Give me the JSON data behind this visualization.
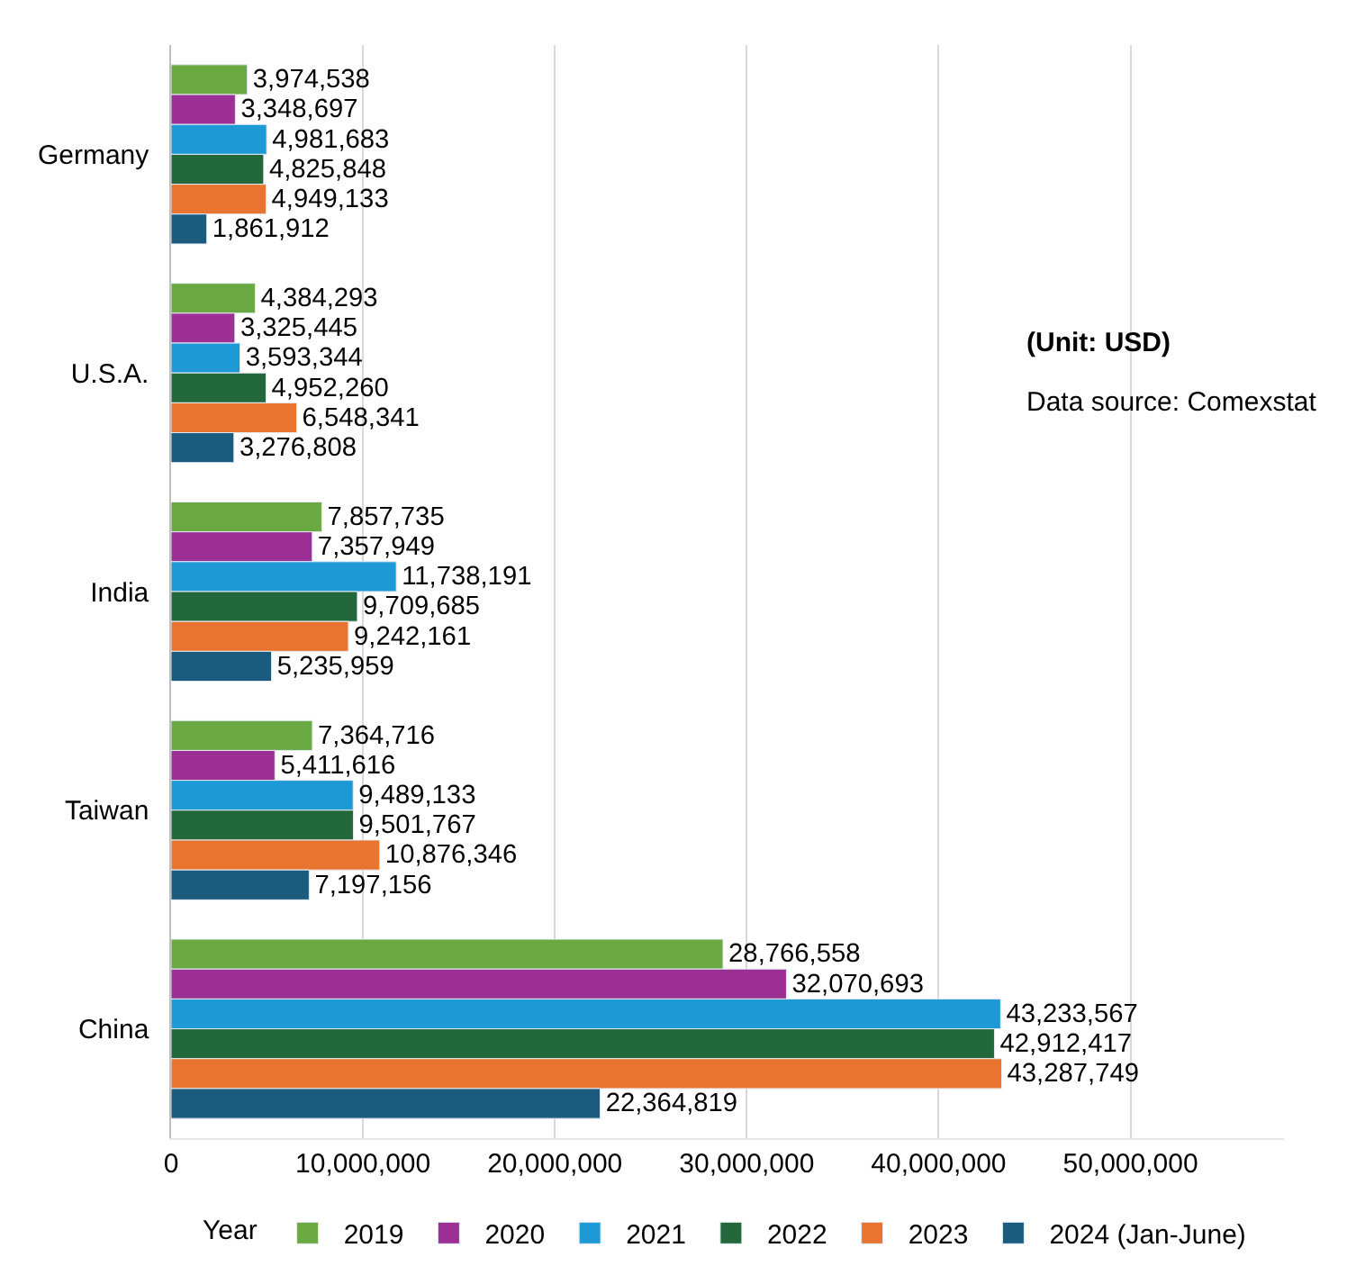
{
  "chart_data": {
    "type": "bar",
    "orientation": "horizontal",
    "legend_title": "Year",
    "categories": [
      "Germany",
      "U.S.A.",
      "India",
      "Taiwan",
      "China"
    ],
    "series": [
      {
        "name": "2019",
        "color": "#6aa842",
        "values": [
          3974538,
          4384293,
          7857735,
          7364716,
          28766558
        ],
        "value_labels": [
          "3,974,538",
          "4,384,293",
          "7,857,735",
          "7,364,716",
          "28,766,558"
        ]
      },
      {
        "name": "2020",
        "color": "#9b2f93",
        "values": [
          3348697,
          3325445,
          7357949,
          5411616,
          32070693
        ],
        "value_labels": [
          "3,348,697",
          "3,325,445",
          "7,357,949",
          "5,411,616",
          "32,070,693"
        ]
      },
      {
        "name": "2021",
        "color": "#1d9ad6",
        "values": [
          4981683,
          3593344,
          11738191,
          9489133,
          43233567
        ],
        "value_labels": [
          "4,981,683",
          "3,593,344",
          "11,738,191",
          "9,489,133",
          "43,233,567"
        ]
      },
      {
        "name": "2022",
        "color": "#22683a",
        "values": [
          4825848,
          4952260,
          9709685,
          9501767,
          42912417
        ],
        "value_labels": [
          "4,825,848",
          "4,952,260",
          "9,709,685",
          "9,501,767",
          "42,912,417"
        ]
      },
      {
        "name": "2023",
        "color": "#e8742f",
        "values": [
          4949133,
          6548341,
          9242161,
          10876346,
          43287749
        ],
        "value_labels": [
          "4,949,133",
          "6,548,341",
          "9,242,161",
          "10,876,346",
          "43,287,749"
        ]
      },
      {
        "name": "2024 (Jan-June)",
        "color": "#1a5b7e",
        "values": [
          1861912,
          3276808,
          5235959,
          7197156,
          22364819
        ],
        "value_labels": [
          "1,861,912",
          "3,276,808",
          "5,235,959",
          "7,197,156",
          "22,364,819"
        ]
      }
    ],
    "xlim": [
      0,
      58000000
    ],
    "xticks": [
      0,
      {
        "value": 10000000,
        "label": "10,000,000"
      },
      {
        "value": 20000000,
        "label": "20,000,000"
      },
      {
        "value": 30000000,
        "label": "30,000,000"
      },
      {
        "value": 40000000,
        "label": "40,000,000"
      },
      {
        "value": 50000000,
        "label": "50,000,000"
      }
    ],
    "grid": "x",
    "legend": "bottom",
    "annotations": [
      "(Unit: USD)",
      "Data source: Comexstat"
    ]
  }
}
